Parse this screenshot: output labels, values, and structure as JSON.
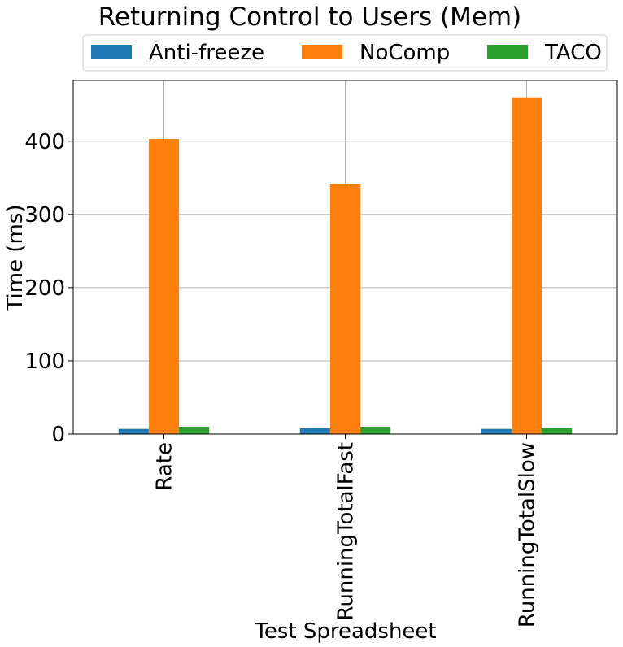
{
  "chart_data": {
    "type": "bar",
    "title": "Returning Control to Users (Mem)",
    "xlabel": "Test Spreadsheet",
    "ylabel": "Time (ms)",
    "categories": [
      "Rate",
      "RunningTotalFast",
      "RunningTotalSlow"
    ],
    "series": [
      {
        "name": "Anti-freeze",
        "color": "#1f77b4",
        "values": [
          7,
          8,
          7
        ]
      },
      {
        "name": "NoComp",
        "color": "#ff7f0e",
        "values": [
          403,
          342,
          460
        ]
      },
      {
        "name": "TACO",
        "color": "#2ca02c",
        "values": [
          10,
          10,
          8
        ]
      }
    ],
    "ylim": [
      0,
      483
    ],
    "yticks": [
      0,
      100,
      200,
      300,
      400
    ],
    "grid": true,
    "legend_position": "top-center"
  }
}
